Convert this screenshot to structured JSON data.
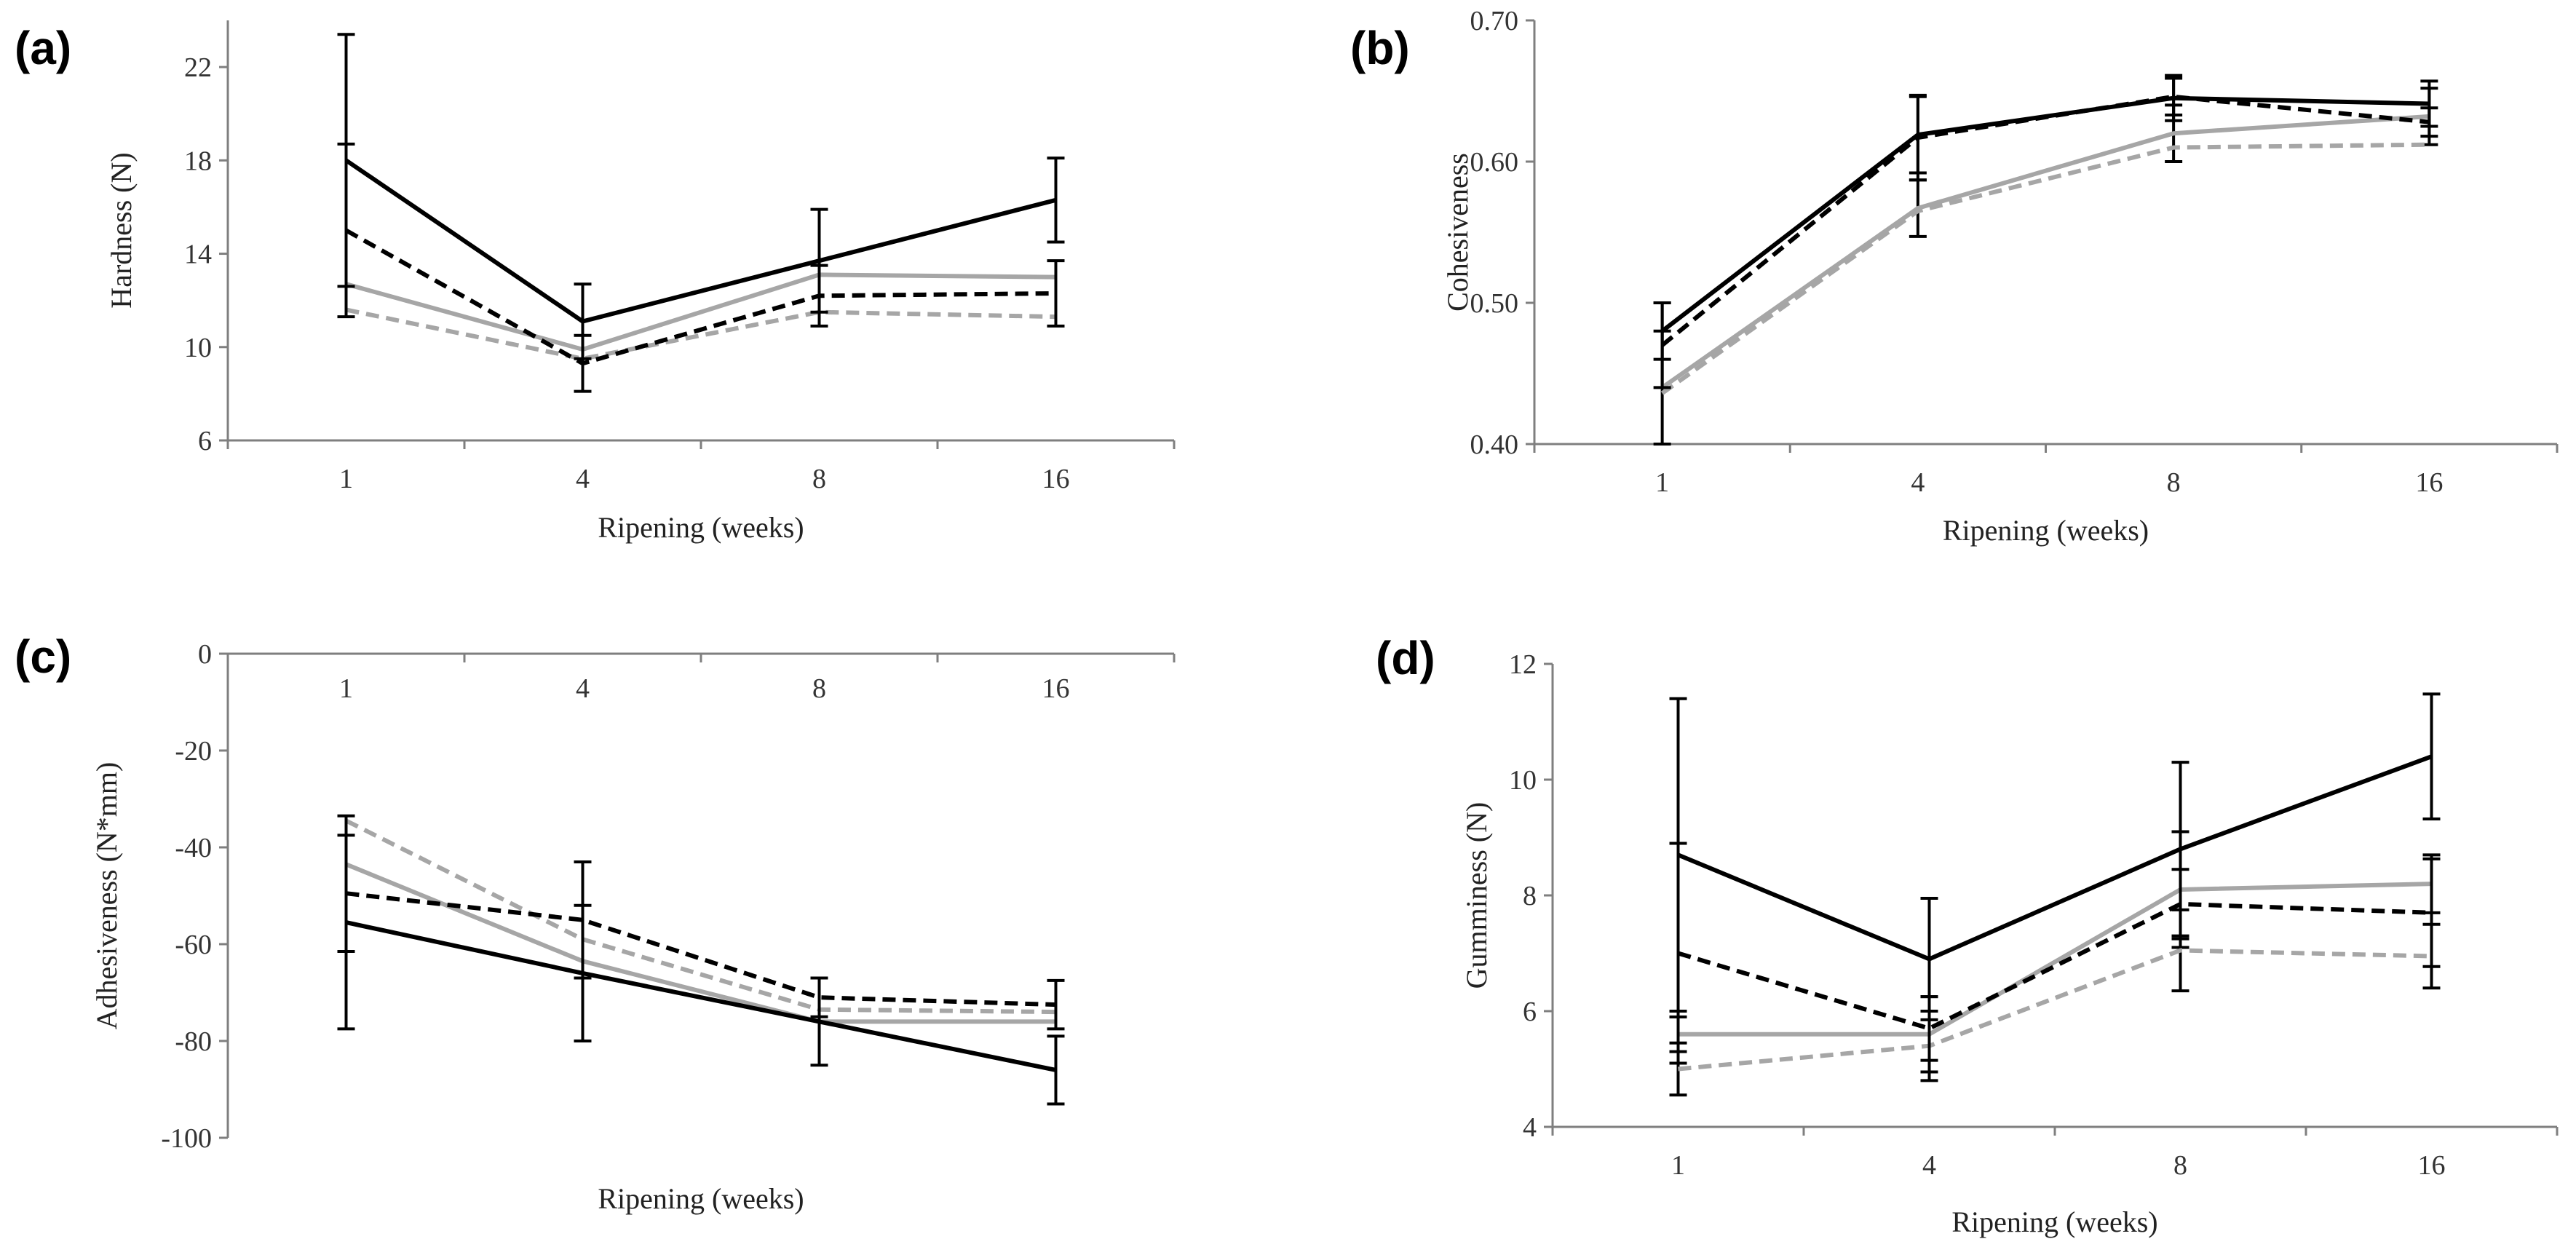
{
  "colors": {
    "black": "#000000",
    "gray": "#a6a6a6",
    "axis": "#7f7f7f"
  },
  "chart_data": [
    {
      "type": "line",
      "panel_label": "(a)",
      "title": "",
      "xlabel": "Ripening (weeks)",
      "ylabel": "Hardness (N)",
      "categories": [
        "1",
        "4",
        "8",
        "16"
      ],
      "ylim": [
        6,
        24
      ],
      "yticks": [
        6,
        10,
        14,
        18,
        22
      ],
      "ytick_labels": [
        "6",
        "10",
        "14",
        "18",
        "22"
      ],
      "x_axis_at": "bottom",
      "series": [
        {
          "name": "black-solid",
          "color": "#000000",
          "dash": "solid",
          "values": [
            18.0,
            11.1,
            13.7,
            16.3
          ],
          "errors": [
            5.4,
            1.6,
            2.2,
            1.8
          ]
        },
        {
          "name": "black-dashed",
          "color": "#000000",
          "dash": "dashed",
          "values": [
            15.0,
            9.3,
            12.2,
            12.3
          ],
          "errors": [
            3.7,
            1.2,
            1.3,
            1.4
          ]
        },
        {
          "name": "gray-solid",
          "color": "#a6a6a6",
          "dash": "solid",
          "values": [
            12.7,
            9.9,
            13.1,
            13.0
          ],
          "errors": [
            0,
            0,
            0,
            0
          ]
        },
        {
          "name": "gray-dashed",
          "color": "#a6a6a6",
          "dash": "dashed",
          "values": [
            11.6,
            9.5,
            11.5,
            11.3
          ],
          "errors": [
            0,
            0,
            0,
            0
          ]
        }
      ]
    },
    {
      "type": "line",
      "panel_label": "(b)",
      "title": "",
      "xlabel": "Ripening (weeks)",
      "ylabel": "Cohesiveness",
      "categories": [
        "1",
        "4",
        "8",
        "16"
      ],
      "ylim": [
        0.4,
        0.7
      ],
      "yticks": [
        0.4,
        0.5,
        0.6,
        0.7
      ],
      "ytick_labels": [
        "0.40",
        "0.50",
        "0.60",
        "0.70"
      ],
      "x_axis_at": "bottom",
      "series": [
        {
          "name": "black-solid",
          "color": "#000000",
          "dash": "solid",
          "values": [
            0.48,
            0.619,
            0.645,
            0.641
          ],
          "errors": [
            0.02,
            0.027,
            0.016,
            0.016
          ]
        },
        {
          "name": "black-dashed",
          "color": "#000000",
          "dash": "dashed",
          "values": [
            0.47,
            0.617,
            0.646,
            0.628
          ],
          "errors": [
            0.03,
            0.03,
            0.013,
            0.01
          ]
        },
        {
          "name": "gray-solid",
          "color": "#a6a6a6",
          "dash": "solid",
          "values": [
            0.44,
            0.567,
            0.62,
            0.632
          ],
          "errors": [
            0.04,
            0.02,
            0.02,
            0.02
          ]
        },
        {
          "name": "gray-dashed",
          "color": "#a6a6a6",
          "dash": "dashed",
          "values": [
            0.436,
            0.565,
            0.61,
            0.612
          ],
          "errors": [
            0,
            0,
            0,
            0
          ]
        }
      ]
    },
    {
      "type": "line",
      "panel_label": "(c)",
      "title": "",
      "xlabel": "Ripening (weeks)",
      "ylabel": "Adhesiveness (N*mm)",
      "categories": [
        "1",
        "4",
        "8",
        "16"
      ],
      "ylim": [
        -100,
        0
      ],
      "yticks": [
        -100,
        -80,
        -60,
        -40,
        -20,
        0
      ],
      "ytick_labels": [
        "-100",
        "-80",
        "-60",
        "-40",
        "-20",
        "0"
      ],
      "x_axis_at": "top",
      "series": [
        {
          "name": "black-solid",
          "color": "#000000",
          "dash": "solid",
          "values": [
            -55.5,
            -66,
            -76,
            -86
          ],
          "errors": [
            22,
            14,
            9,
            7
          ]
        },
        {
          "name": "black-dashed",
          "color": "#000000",
          "dash": "dashed",
          "values": [
            -49.5,
            -55,
            -71,
            -72.5
          ],
          "errors": [
            12,
            12,
            4,
            5
          ]
        },
        {
          "name": "gray-solid",
          "color": "#a6a6a6",
          "dash": "solid",
          "values": [
            -43.5,
            -63.5,
            -76,
            -76
          ],
          "errors": [
            0,
            0,
            0,
            0
          ]
        },
        {
          "name": "gray-dashed",
          "color": "#a6a6a6",
          "dash": "dashed",
          "values": [
            -34.5,
            -59,
            -73.5,
            -74
          ],
          "errors": [
            0,
            0,
            0,
            0
          ]
        }
      ]
    },
    {
      "type": "line",
      "panel_label": "(d)",
      "title": "",
      "xlabel": "Ripening (weeks)",
      "ylabel": "Gumminess (N)",
      "categories": [
        "1",
        "4",
        "8",
        "16"
      ],
      "ylim": [
        4,
        12
      ],
      "yticks": [
        4,
        6,
        8,
        10,
        12
      ],
      "ytick_labels": [
        "4",
        "6",
        "8",
        "10",
        "12"
      ],
      "x_axis_at": "bottom",
      "series": [
        {
          "name": "black-solid",
          "color": "#000000",
          "dash": "solid",
          "values": [
            8.7,
            6.9,
            8.8,
            10.4
          ],
          "errors": [
            2.7,
            1.05,
            1.5,
            1.08
          ]
        },
        {
          "name": "black-dashed",
          "color": "#000000",
          "dash": "dashed",
          "values": [
            7.0,
            5.7,
            7.85,
            7.7
          ],
          "errors": [
            1.9,
            0.55,
            0.6,
            0.93
          ]
        },
        {
          "name": "gray-solid",
          "color": "#a6a6a6",
          "dash": "solid",
          "values": [
            5.6,
            5.6,
            8.1,
            8.2
          ],
          "errors": [
            0.3,
            0.65,
            1.0,
            0.5
          ]
        },
        {
          "name": "gray-dashed",
          "color": "#a6a6a6",
          "dash": "dashed",
          "values": [
            5.0,
            5.4,
            7.05,
            6.95
          ],
          "errors": [
            0.45,
            0.6,
            0.7,
            0.55
          ]
        }
      ]
    }
  ]
}
